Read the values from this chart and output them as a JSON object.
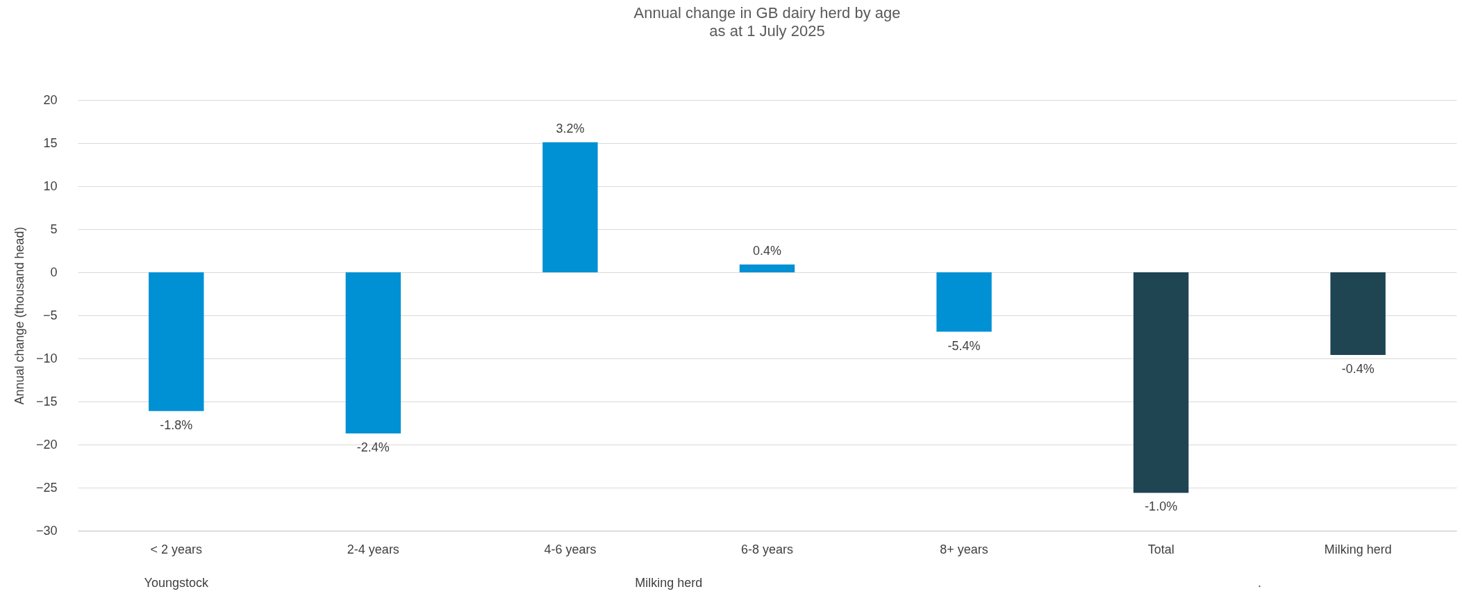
{
  "chart_data": {
    "type": "bar",
    "title": "Annual change in GB dairy herd by age",
    "subtitle": "as at 1 July 2025",
    "ylabel": "Annual change (thousand head)",
    "categories": [
      "< 2 years",
      "2-4 years",
      "4-6 years",
      "6-8 years",
      "8+ years",
      "Total",
      "Milking herd"
    ],
    "values": [
      -16.1,
      -18.7,
      15.1,
      0.9,
      -6.9,
      -25.6,
      -9.6
    ],
    "colors": [
      "#0090d4",
      "#0090d4",
      "#0090d4",
      "#0090d4",
      "#0090d4",
      "#1f4452",
      "#1f4452"
    ],
    "ylim": [
      -30,
      20
    ],
    "yticks": [
      -30,
      -25,
      -20,
      -15,
      -10,
      -5,
      0,
      5,
      10,
      15,
      20
    ],
    "grid": "y",
    "annotations": [
      {
        "text": "-1.8%",
        "x": "< 2 years",
        "y": -16.1
      },
      {
        "text": "-2.4%",
        "x": "2-4 years",
        "y": -18.7
      },
      {
        "text": "3.2%",
        "x": "4-6 years",
        "y": 15.1
      },
      {
        "text": "0.4%",
        "x": "6-8 years",
        "y": 0.9
      },
      {
        "text": "-5.4%",
        "x": "8+ years",
        "y": -6.9
      },
      {
        "text": "-1.0%",
        "x": "Total",
        "y": -25.6
      },
      {
        "text": "-0.4%",
        "x": "Milking herd",
        "y": -9.6
      },
      "Youngstock",
      "Milking herd",
      "."
    ]
  }
}
